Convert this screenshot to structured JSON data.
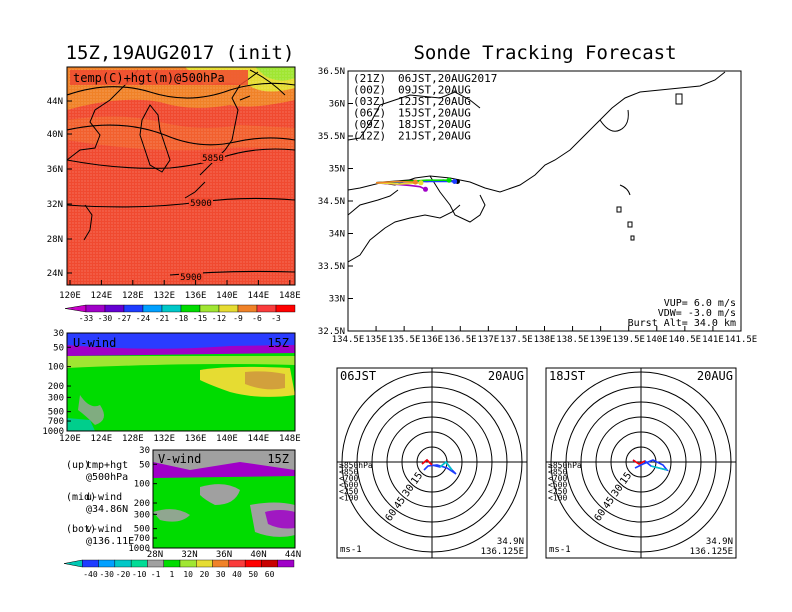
{
  "left_title": "15Z,19AUG2017 (init)",
  "right_title": "Sonde Tracking Forecast",
  "map500": {
    "label": "temp(C)+hgt(m)@500hPa",
    "lat_ticks": [
      "44N",
      "40N",
      "36N",
      "32N",
      "28N",
      "24N"
    ],
    "lon_ticks": [
      "120E",
      "124E",
      "128E",
      "132E",
      "136E",
      "140E",
      "144E",
      "148E"
    ],
    "contour_labels": [
      "5850",
      "5900",
      "5900"
    ]
  },
  "temp_colorbar": {
    "labels": [
      "-33",
      "-30",
      "-27",
      "-24",
      "-21",
      "-18",
      "-15",
      "-12",
      "-9",
      "-6",
      "-3"
    ]
  },
  "uwind": {
    "label": "U-wind",
    "time": "15Z",
    "p_ticks": [
      "30",
      "50",
      "100",
      "200",
      "300",
      "500",
      "700",
      "1000"
    ],
    "lon_ticks": [
      "120E",
      "124E",
      "128E",
      "132E",
      "136E",
      "140E",
      "144E",
      "148E"
    ]
  },
  "vwind": {
    "label": "V-wind",
    "time": "15Z",
    "p_ticks": [
      "30",
      "50",
      "100",
      "200",
      "300",
      "500",
      "700",
      "1000"
    ],
    "lat_ticks": [
      "28N",
      "32N",
      "36N",
      "40N",
      "44N"
    ]
  },
  "wind_colorbar": {
    "labels": [
      "-40",
      "-30",
      "-20",
      "-10",
      "-1",
      "1",
      "10",
      "20",
      "30",
      "40",
      "50",
      "60"
    ]
  },
  "side_notes": [
    {
      "k": "(up)",
      "v": "tmp+hgt"
    },
    {
      "k": "",
      "v": "@500hPa"
    },
    {
      "k": "(mid)",
      "v": "u-wind"
    },
    {
      "k": "",
      "v": "@34.86N"
    },
    {
      "k": "(bot)",
      "v": "v-wind"
    },
    {
      "k": "",
      "v": "@136.11E"
    }
  ],
  "track": {
    "lat_ticks": [
      "36.5N",
      "36N",
      "35.5N",
      "35N",
      "34.5N",
      "34N",
      "33.5N",
      "33N",
      "32.5N"
    ],
    "lon_ticks": [
      "134.5E",
      "135E",
      "135.5E",
      "136E",
      "136.5E",
      "137E",
      "137.5E",
      "138E",
      "138.5E",
      "139E",
      "139.5E",
      "140E",
      "140.5E",
      "141E",
      "141.5E"
    ],
    "legend": [
      {
        "code": "(21Z)",
        "time": "06JST,20AUG2017",
        "color": "#000000"
      },
      {
        "code": "(00Z)",
        "time": "09JST,20AUG",
        "color": "#a000c8"
      },
      {
        "code": "(03Z)",
        "time": "12JST,20AUG",
        "color": "#1e3cff"
      },
      {
        "code": "(06Z)",
        "time": "15JST,20AUG",
        "color": "#00dc00"
      },
      {
        "code": "(09Z)",
        "time": "18JST,20AUG",
        "color": "#e6dc32"
      },
      {
        "code": "(12Z)",
        "time": "21JST,20AUG",
        "color": "#f08228"
      }
    ],
    "vup": "VUP=  6.0 m/s",
    "vdw": "VDW= -3.0 m/s",
    "burst": "Burst Alt= 34.0 km"
  },
  "hodo_left": {
    "time": "06JST",
    "date": "20AUG",
    "unit": "ms-1",
    "lat": "34.9N",
    "lon": "136.125E",
    "ring_labels": [
      "15",
      "30",
      "45",
      "60"
    ],
    "levels": [
      {
        "label": "≥850hPa",
        "color": "#ff0000"
      },
      {
        "label": "<850",
        "color": "#f08228"
      },
      {
        "label": "<700",
        "color": "#e6dc32"
      },
      {
        "label": "<500",
        "color": "#00dc00"
      },
      {
        "label": "<250",
        "color": "#00c8c8"
      },
      {
        "label": "<100",
        "color": "#1e3cff"
      }
    ]
  },
  "hodo_right": {
    "time": "18JST",
    "date": "20AUG",
    "unit": "ms-1",
    "lat": "34.9N",
    "lon": "136.125E",
    "ring_labels": [
      "15",
      "30",
      "45",
      "60"
    ],
    "levels": [
      {
        "label": "≥850hPa",
        "color": "#ff0000"
      },
      {
        "label": "<850",
        "color": "#f08228"
      },
      {
        "label": "<700",
        "color": "#e6dc32"
      },
      {
        "label": "<500",
        "color": "#00dc00"
      },
      {
        "label": "<250",
        "color": "#00c8c8"
      },
      {
        "label": "<100",
        "color": "#1e3cff"
      }
    ]
  },
  "chart_data": [
    {
      "type": "heatmap",
      "title": "temp(C)+hgt(m)@500hPa",
      "xlim": [
        120,
        150
      ],
      "ylim": [
        22,
        48
      ],
      "color_levels": [
        -33,
        -30,
        -27,
        -24,
        -21,
        -18,
        -15,
        -12,
        -9,
        -6,
        -3
      ],
      "colors": [
        "#a000c8",
        "#6400d2",
        "#1e3cff",
        "#00a0ff",
        "#00c8c8",
        "#00dc00",
        "#a0e632",
        "#e6dc32",
        "#f08228",
        "#fa3c3c",
        "#ff0000"
      ]
    },
    {
      "type": "heatmap",
      "title": "U-wind",
      "xlim": [
        120,
        150
      ],
      "ylabel_ticks": [
        30,
        50,
        100,
        200,
        300,
        500,
        700,
        1000
      ],
      "color_levels": [
        -40,
        -30,
        -20,
        -10,
        -1,
        1,
        10,
        20,
        30,
        40,
        50,
        60
      ],
      "colors": [
        "#1e3cff",
        "#00a0ff",
        "#00c8c8",
        "#00dc96",
        "#a0a0a0",
        "#00dc00",
        "#a0e632",
        "#e6dc32",
        "#f08228",
        "#fa3c3c",
        "#ff0000",
        "#c80000",
        "#a000c8"
      ]
    },
    {
      "type": "heatmap",
      "title": "V-wind",
      "xlim": [
        28,
        44
      ],
      "ylabel_ticks": [
        30,
        50,
        100,
        200,
        300,
        500,
        700,
        1000
      ]
    },
    {
      "type": "line",
      "title": "Sonde Tracking Forecast",
      "xlim": [
        134.5,
        141.5
      ],
      "ylim": [
        32.5,
        36.5
      ],
      "series": [
        {
          "name": "(21Z) 06JST,20AUG2017",
          "x": [
            135.0,
            135.3,
            135.6,
            135.9,
            136.2,
            136.45
          ],
          "y": [
            34.78,
            34.8,
            34.82,
            34.8,
            34.82,
            34.8
          ]
        },
        {
          "name": "(00Z) 09JST,20AUG",
          "x": [
            135.0,
            135.3,
            135.6,
            135.78,
            135.88
          ],
          "y": [
            34.78,
            34.76,
            34.74,
            34.72,
            34.68
          ]
        },
        {
          "name": "(03Z) 12JST,20AUG",
          "x": [
            135.0,
            135.4,
            135.8,
            136.1,
            136.4
          ],
          "y": [
            34.78,
            34.79,
            34.8,
            34.8,
            34.8
          ]
        },
        {
          "name": "(06Z) 15JST,20AUG",
          "x": [
            135.0,
            135.5,
            135.9,
            136.3
          ],
          "y": [
            34.78,
            34.8,
            34.82,
            34.82
          ]
        },
        {
          "name": "(09Z) 18JST,20AUG",
          "x": [
            135.0,
            135.4,
            135.8
          ],
          "y": [
            34.78,
            34.76,
            34.78
          ]
        },
        {
          "name": "(12Z) 21JST,20AUG",
          "x": [
            135.0,
            135.4,
            135.7
          ],
          "y": [
            34.78,
            34.8,
            34.79
          ]
        }
      ]
    }
  ]
}
